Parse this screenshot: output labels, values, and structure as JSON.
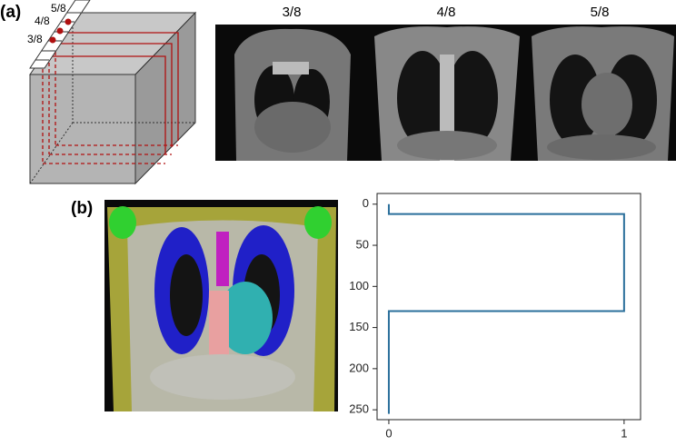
{
  "panel_a": {
    "label": "(a)",
    "cube_labels": [
      "5/8",
      "4/8",
      "3/8"
    ],
    "image_titles": [
      "3/8",
      "4/8",
      "5/8"
    ]
  },
  "panel_b": {
    "label": "(b)"
  },
  "chart_data": {
    "type": "line",
    "x": [
      0,
      0,
      1,
      1,
      0,
      0
    ],
    "series": [
      {
        "color": "#2a6f9b",
        "values": [
          0,
          12,
          12,
          130,
          130,
          255
        ]
      }
    ],
    "xlim": [
      -0.05,
      1.07
    ],
    "xticks": [
      0,
      1
    ],
    "ylim": [
      262,
      -13
    ],
    "yticks": [
      0,
      50,
      100,
      150,
      200,
      250
    ]
  }
}
